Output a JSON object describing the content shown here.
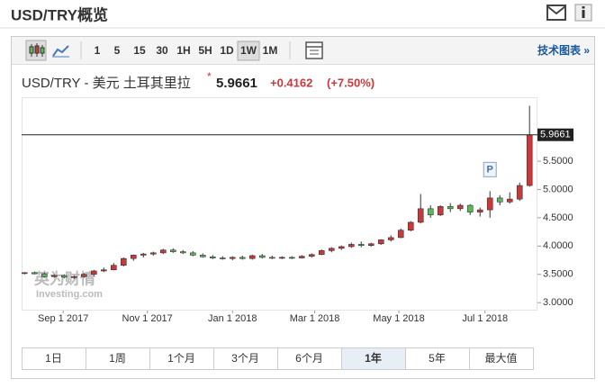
{
  "header": {
    "title": "USD/TRY概览"
  },
  "toolbar": {
    "intervals": [
      "1",
      "5",
      "15",
      "30",
      "1H",
      "5H",
      "1D",
      "1W",
      "1M"
    ],
    "selected_index": 7,
    "link": "技术图表 »"
  },
  "quote": {
    "name": "USD/TRY - 美元 土耳其里拉",
    "price": "5.9661",
    "change": "+0.4162",
    "change_percent": "(+7.50%)"
  },
  "ranges": {
    "labels": [
      "1日",
      "1周",
      "1个月",
      "3个月",
      "6个月",
      "1年",
      "5年",
      "最大值"
    ],
    "selected_index": 5
  },
  "watermark": {
    "brand": "英为财情",
    "site": "Investing.com"
  },
  "chart_data": {
    "type": "candlestick",
    "up_color": "#c8393b",
    "down_color": "#5cb85c",
    "categories": [
      null,
      null,
      null,
      null,
      null,
      null,
      null,
      null,
      null,
      null,
      null,
      null,
      null,
      null,
      null,
      null,
      null,
      null,
      null,
      null,
      null,
      null,
      null,
      null,
      null,
      null,
      null,
      null,
      null,
      null,
      null,
      null,
      null,
      null,
      null,
      null,
      null,
      null,
      null,
      null,
      null,
      null,
      null,
      null,
      null,
      null,
      null,
      null,
      null,
      null,
      null,
      null
    ],
    "open": [
      3.52,
      3.53,
      3.51,
      3.46,
      3.48,
      3.45,
      3.46,
      3.5,
      3.56,
      3.58,
      3.66,
      3.78,
      3.84,
      3.86,
      3.88,
      3.93,
      3.9,
      3.88,
      3.84,
      3.81,
      3.79,
      3.78,
      3.8,
      3.78,
      3.83,
      3.8,
      3.79,
      3.8,
      3.79,
      3.82,
      3.85,
      3.92,
      3.96,
      3.99,
      4.03,
      4.01,
      4.04,
      4.11,
      4.15,
      4.28,
      4.42,
      4.66,
      4.55,
      4.7,
      4.66,
      4.72,
      4.6,
      4.64,
      4.85,
      4.78,
      4.83,
      5.07
    ],
    "high": [
      3.54,
      3.55,
      3.53,
      3.5,
      3.5,
      3.48,
      3.52,
      3.58,
      3.62,
      3.7,
      3.8,
      3.85,
      3.88,
      3.9,
      3.95,
      3.96,
      3.93,
      3.91,
      3.87,
      3.84,
      3.82,
      3.82,
      3.83,
      3.85,
      3.86,
      3.83,
      3.82,
      3.82,
      3.84,
      3.87,
      3.94,
      3.98,
      4.01,
      4.06,
      4.08,
      4.06,
      4.12,
      4.19,
      4.31,
      4.44,
      4.92,
      4.72,
      4.72,
      4.76,
      4.75,
      4.74,
      4.68,
      4.97,
      4.9,
      4.95,
      5.12,
      6.48
    ],
    "low": [
      3.5,
      3.5,
      3.44,
      3.44,
      3.43,
      3.42,
      3.44,
      3.47,
      3.54,
      3.57,
      3.64,
      3.74,
      3.8,
      3.83,
      3.86,
      3.88,
      3.86,
      3.82,
      3.8,
      3.77,
      3.76,
      3.75,
      3.76,
      3.76,
      3.78,
      3.77,
      3.77,
      3.77,
      3.78,
      3.8,
      3.84,
      3.89,
      3.93,
      3.97,
      3.98,
      3.99,
      4.02,
      4.08,
      4.14,
      4.26,
      4.4,
      4.5,
      4.53,
      4.6,
      4.62,
      4.55,
      4.52,
      4.5,
      4.72,
      4.75,
      4.8,
      5.05
    ],
    "close": [
      3.53,
      3.51,
      3.46,
      3.48,
      3.45,
      3.46,
      3.5,
      3.56,
      3.58,
      3.66,
      3.78,
      3.84,
      3.86,
      3.88,
      3.93,
      3.9,
      3.88,
      3.84,
      3.81,
      3.79,
      3.78,
      3.8,
      3.78,
      3.83,
      3.8,
      3.79,
      3.8,
      3.79,
      3.82,
      3.85,
      3.92,
      3.96,
      3.99,
      4.03,
      4.01,
      4.04,
      4.11,
      4.15,
      4.28,
      4.42,
      4.66,
      4.55,
      4.7,
      4.66,
      4.72,
      4.6,
      4.64,
      4.85,
      4.78,
      4.83,
      5.07,
      5.9661
    ],
    "xlim": [
      -0.3,
      51.8
    ],
    "xticks": [
      {
        "value": 3.9,
        "label": "Sep 1 2017"
      },
      {
        "value": 12.4,
        "label": "Nov 1 2017"
      },
      {
        "value": 21.0,
        "label": "Jan 1 2018"
      },
      {
        "value": 29.3,
        "label": "Mar 1 2018"
      },
      {
        "value": 37.8,
        "label": "May 1 2018"
      },
      {
        "value": 46.5,
        "label": "Jul 1 2018"
      }
    ],
    "ylim": [
      2.86,
      6.63
    ],
    "yticks": [
      {
        "value": 3,
        "label": "3.0000"
      },
      {
        "value": 3.5,
        "label": "3.5000"
      },
      {
        "value": 4,
        "label": "4.0000"
      },
      {
        "value": 4.5,
        "label": "4.5000"
      },
      {
        "value": 5,
        "label": "5.0000"
      },
      {
        "value": 5.5,
        "label": "5.5000"
      }
    ],
    "last_price": 5.9661,
    "annotations": [
      {
        "index": 47,
        "text": "P"
      }
    ]
  }
}
